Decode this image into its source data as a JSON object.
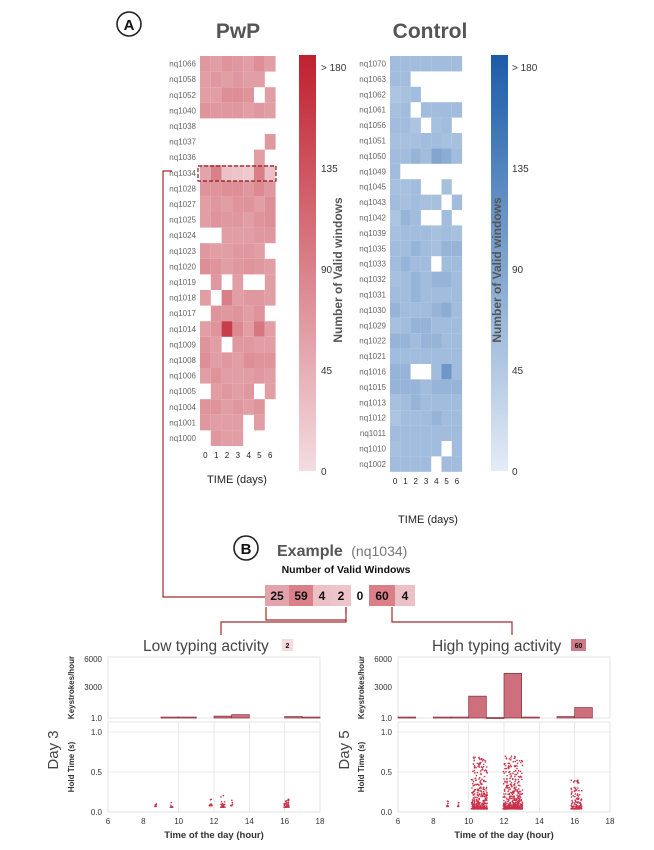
{
  "panel_a_label": "A",
  "panel_b_label": "B",
  "heatmaps": {
    "xlabel": "TIME (days)",
    "days": [
      "0",
      "1",
      "2",
      "3",
      "4",
      "5",
      "6"
    ],
    "colorbar_label": "Number of Valid windows",
    "colorbar_ticks": [
      "> 180",
      "135",
      "90",
      "45",
      "0"
    ],
    "pwp": {
      "title": "PwP",
      "color_low": "#f3dde1",
      "color_high": "#c0202e",
      "subjects": [
        "nq1066",
        "nq1058",
        "nq1052",
        "nq1040",
        "nq1038",
        "nq1037",
        "nq1036",
        "nq1034",
        "nq1028",
        "nq1027",
        "nq1025",
        "nq1024",
        "nq1023",
        "nq1020",
        "nq1019",
        "nq1018",
        "nq1017",
        "nq1014",
        "nq1009",
        "nq1008",
        "nq1006",
        "nq1005",
        "nq1004",
        "nq1001",
        "nq1000"
      ]
    },
    "control": {
      "title": "Control",
      "color_low": "#e4ecf6",
      "color_high": "#1b5ca8",
      "subjects": [
        "nq1070",
        "nq1063",
        "nq1062",
        "nq1061",
        "nq1056",
        "nq1051",
        "nq1050",
        "nq1049",
        "nq1045",
        "nq1043",
        "nq1042",
        "nq1039",
        "nq1035",
        "nq1033",
        "nq1032",
        "nq1031",
        "nq1030",
        "nq1029",
        "nq1022",
        "nq1021",
        "nq1016",
        "nq1015",
        "nq1013",
        "nq1012",
        "nq1011",
        "nq1010",
        "nq1002"
      ]
    }
  },
  "example": {
    "title": "Example",
    "subject": "(nq1034)",
    "strip_label": "Number of Valid Windows",
    "values": [
      "25",
      "59",
      "4",
      "2",
      "0",
      "60",
      "4"
    ]
  },
  "panels": {
    "low": {
      "title": "Low typing activity",
      "badge": "2",
      "day_label": "Day 3"
    },
    "high": {
      "title": "High typing activity",
      "badge": "60",
      "day_label": "Day 5"
    },
    "top_ylabel": "Keystrokes/hour",
    "top_yticks": [
      "6000",
      "3000",
      "1.0"
    ],
    "bottom_ylabel": "Hold Time (s)",
    "bottom_yticks": [
      "1.0",
      "0.5",
      "0.0"
    ],
    "xticks": [
      "6",
      "8",
      "10",
      "12",
      "14",
      "16",
      "18"
    ],
    "xlabel": "Time of the day (hour)"
  },
  "chart_data": [
    {
      "type": "heatmap",
      "title": "PwP",
      "xlabel": "TIME (days)",
      "colorbar": "Number of Valid windows",
      "colorbar_range": [
        0,
        180
      ],
      "x": [
        0,
        1,
        2,
        3,
        4,
        5,
        6
      ],
      "rows": [
        "nq1066",
        "nq1058",
        "nq1052",
        "nq1040",
        "nq1038",
        "nq1037",
        "nq1036",
        "nq1034",
        "nq1028",
        "nq1027",
        "nq1025",
        "nq1024",
        "nq1023",
        "nq1020",
        "nq1019",
        "nq1018",
        "nq1017",
        "nq1014",
        "nq1009",
        "nq1008",
        "nq1006",
        "nq1005",
        "nq1004",
        "nq1001",
        "nq1000"
      ],
      "values": [
        [
          35,
          30,
          40,
          35,
          30,
          45,
          30
        ],
        [
          30,
          35,
          30,
          35,
          30,
          30,
          null
        ],
        [
          30,
          30,
          45,
          45,
          40,
          null,
          30
        ],
        [
          40,
          35,
          35,
          35,
          30,
          35,
          30
        ],
        [
          null,
          null,
          null,
          null,
          null,
          null,
          null
        ],
        [
          null,
          null,
          null,
          null,
          null,
          null,
          35
        ],
        [
          null,
          null,
          null,
          null,
          null,
          30,
          null
        ],
        [
          25,
          59,
          4,
          2,
          0,
          60,
          4
        ],
        [
          40,
          40,
          45,
          45,
          35,
          50,
          35
        ],
        [
          30,
          35,
          30,
          40,
          40,
          30,
          45
        ],
        [
          30,
          40,
          35,
          35,
          30,
          40,
          45
        ],
        [
          null,
          null,
          30,
          30,
          30,
          35,
          35
        ],
        [
          35,
          30,
          30,
          35,
          35,
          30,
          null
        ],
        [
          45,
          40,
          30,
          35,
          40,
          35,
          30
        ],
        [
          null,
          35,
          null,
          30,
          null,
          null,
          30
        ],
        [
          30,
          null,
          60,
          30,
          35,
          35,
          30
        ],
        [
          null,
          40,
          35,
          40,
          30,
          40,
          null
        ],
        [
          30,
          40,
          140,
          50,
          30,
          70,
          30
        ],
        [
          40,
          30,
          null,
          35,
          35,
          30,
          30
        ],
        [
          45,
          30,
          35,
          30,
          45,
          40,
          40
        ],
        [
          30,
          40,
          30,
          30,
          30,
          35,
          30
        ],
        [
          null,
          30,
          35,
          30,
          35,
          null,
          30
        ],
        [
          40,
          40,
          30,
          35,
          30,
          40,
          null
        ],
        [
          35,
          30,
          30,
          30,
          null,
          30,
          null
        ],
        [
          null,
          35,
          30,
          30,
          null,
          null,
          null
        ]
      ]
    },
    {
      "type": "heatmap",
      "title": "Control",
      "xlabel": "TIME (days)",
      "colorbar": "Number of Valid windows",
      "colorbar_range": [
        0,
        180
      ],
      "x": [
        0,
        1,
        2,
        3,
        4,
        5,
        6
      ],
      "rows": [
        "nq1070",
        "nq1063",
        "nq1062",
        "nq1061",
        "nq1056",
        "nq1051",
        "nq1050",
        "nq1049",
        "nq1045",
        "nq1043",
        "nq1042",
        "nq1039",
        "nq1035",
        "nq1033",
        "nq1032",
        "nq1031",
        "nq1030",
        "nq1029",
        "nq1022",
        "nq1021",
        "nq1016",
        "nq1015",
        "nq1013",
        "nq1012",
        "nq1011",
        "nq1010",
        "nq1002"
      ],
      "values": [
        [
          30,
          30,
          30,
          30,
          30,
          30,
          30
        ],
        [
          30,
          30,
          null,
          null,
          null,
          null,
          null
        ],
        [
          20,
          25,
          30,
          null,
          null,
          null,
          null
        ],
        [
          25,
          30,
          null,
          30,
          30,
          30,
          30
        ],
        [
          30,
          30,
          20,
          null,
          25,
          30,
          null
        ],
        [
          25,
          25,
          25,
          30,
          30,
          25,
          25
        ],
        [
          30,
          30,
          40,
          30,
          60,
          50,
          30
        ],
        [
          30,
          null,
          null,
          null,
          null,
          null,
          null
        ],
        [
          25,
          25,
          30,
          null,
          null,
          25,
          null
        ],
        [
          30,
          25,
          30,
          25,
          25,
          null,
          30
        ],
        [
          20,
          40,
          30,
          null,
          null,
          30,
          null
        ],
        [
          25,
          30,
          30,
          30,
          25,
          30,
          25
        ],
        [
          30,
          30,
          40,
          30,
          25,
          40,
          40
        ],
        [
          30,
          40,
          30,
          30,
          null,
          30,
          30
        ],
        [
          25,
          30,
          40,
          30,
          40,
          40,
          30
        ],
        [
          30,
          30,
          40,
          30,
          30,
          30,
          30
        ],
        [
          40,
          30,
          30,
          30,
          40,
          50,
          30
        ],
        [
          25,
          30,
          40,
          40,
          30,
          30,
          30
        ],
        [
          40,
          40,
          30,
          40,
          40,
          30,
          30
        ],
        [
          30,
          30,
          30,
          30,
          30,
          30,
          30
        ],
        [
          40,
          40,
          null,
          null,
          30,
          80,
          30
        ],
        [
          40,
          40,
          40,
          30,
          40,
          40,
          40
        ],
        [
          25,
          30,
          40,
          30,
          30,
          30,
          30
        ],
        [
          20,
          30,
          30,
          30,
          40,
          30,
          30
        ],
        [
          30,
          30,
          30,
          30,
          30,
          30,
          30
        ],
        [
          25,
          30,
          30,
          30,
          30,
          null,
          30
        ],
        [
          30,
          30,
          30,
          30,
          null,
          30,
          30
        ]
      ]
    },
    {
      "type": "bar",
      "title": "Low typing activity",
      "ylabel": "Keystrokes/hour",
      "xlabel": "Time of the day (hour)",
      "xlim": [
        6,
        18
      ],
      "ylim": [
        0,
        6000
      ],
      "bins": [
        [
          8,
          9
        ],
        [
          9,
          10
        ],
        [
          10,
          11
        ],
        [
          11,
          12
        ],
        [
          12,
          13
        ],
        [
          13,
          14
        ],
        [
          14,
          15
        ],
        [
          15,
          16
        ],
        [
          16,
          17
        ],
        [
          17,
          18
        ]
      ],
      "values": [
        0,
        100,
        100,
        0,
        200,
        350,
        0,
        0,
        150,
        100
      ]
    },
    {
      "type": "scatter",
      "title": "Low typing activity",
      "ylabel": "Hold Time (s)",
      "xlabel": "Time of the day (hour)",
      "xlim": [
        6,
        18
      ],
      "ylim": [
        0,
        1.0
      ],
      "clusters": [
        {
          "x_center": 8.7,
          "x_spread": 0.05,
          "y_min": 0.07,
          "y_max": 0.13,
          "count": 10
        },
        {
          "x_center": 9.6,
          "x_spread": 0.08,
          "y_min": 0.06,
          "y_max": 0.13,
          "count": 14
        },
        {
          "x_center": 11.8,
          "x_spread": 0.1,
          "y_min": 0.08,
          "y_max": 0.18,
          "count": 16
        },
        {
          "x_center": 12.5,
          "x_spread": 0.12,
          "y_min": 0.06,
          "y_max": 0.22,
          "count": 40
        },
        {
          "x_center": 13.0,
          "x_spread": 0.05,
          "y_min": 0.08,
          "y_max": 0.16,
          "count": 8
        },
        {
          "x_center": 16.1,
          "x_spread": 0.15,
          "y_min": 0.06,
          "y_max": 0.16,
          "count": 40
        }
      ]
    },
    {
      "type": "bar",
      "title": "High typing activity",
      "ylabel": "Keystrokes/hour",
      "xlabel": "Time of the day (hour)",
      "xlim": [
        6,
        18
      ],
      "ylim": [
        0,
        6000
      ],
      "bins": [
        [
          6,
          7
        ],
        [
          7,
          8
        ],
        [
          8,
          9
        ],
        [
          9,
          10
        ],
        [
          10,
          11
        ],
        [
          11,
          12
        ],
        [
          12,
          13
        ],
        [
          13,
          14
        ],
        [
          14,
          15
        ],
        [
          15,
          16
        ],
        [
          16,
          17
        ],
        [
          17,
          18
        ]
      ],
      "values": [
        100,
        0,
        100,
        100,
        2300,
        50,
        4700,
        100,
        0,
        150,
        1100,
        0
      ]
    },
    {
      "type": "scatter",
      "title": "High typing activity",
      "ylabel": "Hold Time (s)",
      "xlabel": "Time of the day (hour)",
      "xlim": [
        6,
        18
      ],
      "ylim": [
        0,
        1.0
      ],
      "clusters": [
        {
          "x_center": 8.8,
          "x_spread": 0.05,
          "y_min": 0.07,
          "y_max": 0.14,
          "count": 10
        },
        {
          "x_center": 9.4,
          "x_spread": 0.05,
          "y_min": 0.07,
          "y_max": 0.14,
          "count": 8
        },
        {
          "x_center": 10.6,
          "x_spread": 0.45,
          "y_min": 0.04,
          "y_max": 0.7,
          "count": 420
        },
        {
          "x_center": 12.5,
          "x_spread": 0.55,
          "y_min": 0.04,
          "y_max": 0.7,
          "count": 560
        },
        {
          "x_center": 16.1,
          "x_spread": 0.3,
          "y_min": 0.04,
          "y_max": 0.4,
          "count": 160
        }
      ]
    }
  ]
}
